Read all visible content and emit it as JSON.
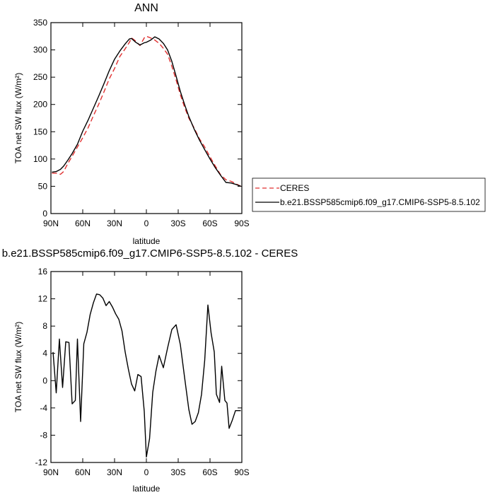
{
  "chart_data": [
    {
      "type": "line",
      "title": "ANN",
      "xlabel": "latitude",
      "ylabel": "TOA net SW flux (W/m²)",
      "x_tick_labels": [
        "90N",
        "60N",
        "30N",
        "0",
        "30S",
        "60S",
        "90S"
      ],
      "x_tick_values": [
        90,
        60,
        30,
        0,
        -30,
        -60,
        -90
      ],
      "xlim": [
        90,
        -90
      ],
      "ylim": [
        0,
        350
      ],
      "y_ticks": [
        0,
        50,
        100,
        150,
        200,
        250,
        300,
        350
      ],
      "legend_position": "right",
      "series": [
        {
          "name": "CERES",
          "color": "#e03030",
          "dash": "dashed",
          "x": [
            89,
            85,
            81,
            78,
            74,
            70,
            65,
            60,
            55,
            50,
            45,
            40,
            35,
            30,
            25,
            20,
            16,
            14,
            10,
            6,
            2,
            0,
            -4,
            -8,
            -12,
            -16,
            -20,
            -24,
            -28,
            -32,
            -36,
            -40,
            -45,
            -50,
            -55,
            -60,
            -65,
            -70,
            -75,
            -80,
            -85,
            -89
          ],
          "y": [
            74,
            74,
            72,
            77,
            92,
            105,
            122,
            139,
            157,
            179,
            200,
            223,
            247,
            266,
            288,
            302,
            314,
            322,
            316,
            308,
            322,
            325,
            322,
            318,
            312,
            303,
            292,
            270,
            245,
            218,
            195,
            175,
            157,
            137,
            122,
            104,
            87,
            71,
            62,
            59,
            54,
            50
          ]
        },
        {
          "name": "b.e21.BSSP585cmip6.f09_g17.CMIP6-SSP5-8.5.102",
          "color": "#000000",
          "dash": "solid",
          "x": [
            89,
            85,
            81,
            78,
            74,
            70,
            65,
            60,
            55,
            50,
            45,
            40,
            35,
            30,
            25,
            20,
            16,
            14,
            10,
            6,
            2,
            0,
            -4,
            -8,
            -12,
            -16,
            -20,
            -24,
            -28,
            -32,
            -36,
            -40,
            -45,
            -50,
            -55,
            -60,
            -65,
            -70,
            -75,
            -80,
            -85,
            -89
          ],
          "y": [
            76,
            77,
            81,
            87,
            98,
            110,
            127,
            151,
            171,
            193,
            215,
            238,
            262,
            283,
            298,
            311,
            320,
            321,
            314,
            309,
            313,
            314,
            318,
            324,
            320,
            312,
            300,
            279,
            252,
            224,
            200,
            178,
            155,
            135,
            117,
            100,
            84,
            70,
            57,
            56,
            53,
            50
          ]
        }
      ]
    },
    {
      "type": "line",
      "title": "b.e21.BSSP585cmip6.f09_g17.CMIP6-SSP5-8.5.102 - CERES",
      "xlabel": "latitude",
      "ylabel": "TOA net SW flux (W/m²)",
      "x_tick_labels": [
        "90N",
        "60N",
        "30N",
        "0",
        "30S",
        "60S",
        "90S"
      ],
      "x_tick_values": [
        90,
        60,
        30,
        0,
        -30,
        -60,
        -90
      ],
      "xlim": [
        90,
        -90
      ],
      "ylim": [
        -12,
        16
      ],
      "y_ticks": [
        -12,
        -8,
        -4,
        0,
        4,
        8,
        12,
        16
      ],
      "series": [
        {
          "color": "#000000",
          "x": [
            88,
            85,
            82,
            79,
            76,
            73,
            70,
            67,
            65,
            62,
            59,
            56,
            53,
            50,
            47,
            44,
            41,
            38,
            35,
            32,
            29,
            26,
            23,
            20,
            17,
            14,
            11,
            8,
            5,
            2,
            0,
            -3,
            -6,
            -9,
            -12,
            -16,
            -20,
            -24,
            -28,
            -32,
            -36,
            -40,
            -43,
            -46,
            -49,
            -52,
            -55,
            -58,
            -61,
            -64,
            -66,
            -69,
            -71,
            -74,
            -76,
            -78,
            -81,
            -84,
            -87,
            -89
          ],
          "y": [
            4.2,
            -1.8,
            6.1,
            -1.0,
            5.7,
            5.6,
            -3.4,
            -2.9,
            6.1,
            -6.0,
            5.4,
            7.1,
            9.7,
            11.4,
            12.7,
            12.6,
            12.1,
            11.0,
            11.6,
            10.8,
            9.8,
            9.0,
            7.3,
            4.2,
            1.7,
            -0.5,
            -1.5,
            0.9,
            0.6,
            -4.5,
            -11.2,
            -8.5,
            -1.7,
            1.4,
            3.7,
            1.9,
            4.8,
            7.5,
            8.2,
            5.3,
            0.5,
            -4.2,
            -6.4,
            -6.0,
            -4.7,
            -2.0,
            3.0,
            11.1,
            7.0,
            4.2,
            -2.0,
            -3.2,
            2.1,
            -2.9,
            -3.3,
            -7.0,
            -5.8,
            -4.4,
            -4.4,
            -4.4
          ]
        }
      ]
    }
  ]
}
